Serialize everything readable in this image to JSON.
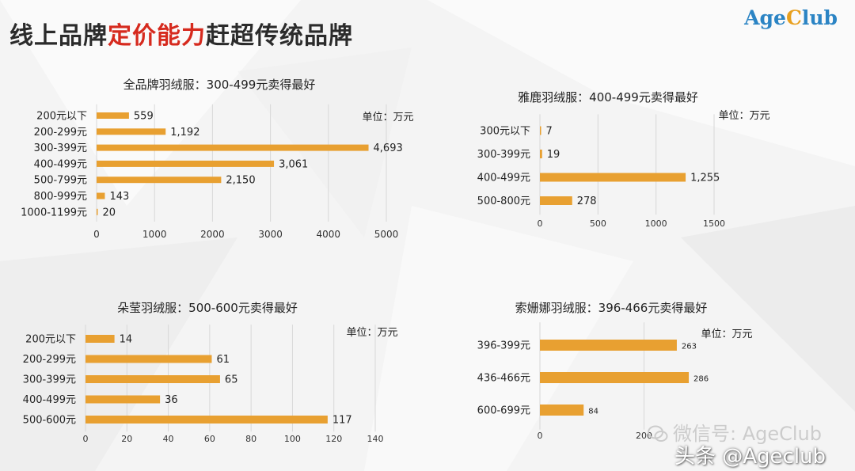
{
  "page": {
    "title_part1": "线上品牌",
    "title_highlight": "定价能力",
    "title_part2": "赶超传统品牌",
    "logo_part1": "Age",
    "logo_part2": "C",
    "logo_part3": "lub"
  },
  "watermarks": {
    "wechat": "微信号: AgeClub",
    "toutiao": "头条 @Ageclub"
  },
  "colors": {
    "bar": "#e8a031",
    "title_highlight": "#d62a1e",
    "logo_blue": "#2b84c4",
    "logo_orange": "#e8a020"
  },
  "chart_data": [
    {
      "type": "bar",
      "orientation": "horizontal",
      "title": "全品牌羽绒服：300-499元卖得最好",
      "unit": "单位：万元",
      "categories": [
        "200元以下",
        "200-299元",
        "300-399元",
        "400-499元",
        "500-799元",
        "800-999元",
        "1000-1199元"
      ],
      "values": [
        559,
        1192,
        4693,
        3061,
        2150,
        143,
        20
      ],
      "value_labels": [
        "559",
        "1,192",
        "4,693",
        "3,061",
        "2,150",
        "143",
        "20"
      ],
      "xlim": [
        0,
        5000
      ],
      "xticks": [
        0,
        1000,
        2000,
        3000,
        4000,
        5000
      ],
      "grid": true
    },
    {
      "type": "bar",
      "orientation": "horizontal",
      "title": "雅鹿羽绒服：400-499元卖得最好",
      "unit": "单位：万元",
      "categories": [
        "300元以下",
        "300-399元",
        "400-499元",
        "500-800元"
      ],
      "values": [
        7,
        19,
        1255,
        278
      ],
      "value_labels": [
        "7",
        "19",
        "1,255",
        "278"
      ],
      "xlim": [
        0,
        1500
      ],
      "xticks": [
        0,
        500,
        1000,
        1500
      ],
      "grid": true
    },
    {
      "type": "bar",
      "orientation": "horizontal",
      "title": "朵莹羽绒服：500-600元卖得最好",
      "unit": "单位：万元",
      "categories": [
        "200元以下",
        "200-299元",
        "300-399元",
        "400-499元",
        "500-600元"
      ],
      "values": [
        14,
        61,
        65,
        36,
        117
      ],
      "value_labels": [
        "14",
        "61",
        "65",
        "36",
        "117"
      ],
      "xlim": [
        0,
        140
      ],
      "xticks": [
        0,
        20,
        40,
        60,
        80,
        100,
        120,
        140
      ],
      "grid": true
    },
    {
      "type": "bar",
      "orientation": "horizontal",
      "title": "索姗娜羽绒服：396-466元卖得最好",
      "unit": "单位：万元",
      "categories": [
        "396-399元",
        "436-466元",
        "600-699元"
      ],
      "values": [
        263,
        286,
        84
      ],
      "value_labels": [
        "263",
        "286",
        "84"
      ],
      "xlim": [
        0,
        400
      ],
      "xticks": [
        0,
        200
      ],
      "grid": true
    }
  ]
}
